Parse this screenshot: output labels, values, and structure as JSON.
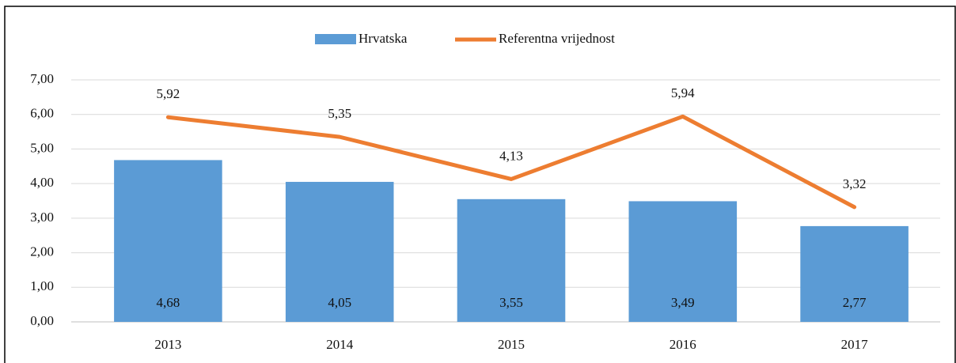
{
  "chart_data": {
    "type": "bar",
    "categories": [
      "2013",
      "2014",
      "2015",
      "2016",
      "2017"
    ],
    "series": [
      {
        "name": "Hrvatska",
        "type": "bar",
        "color": "#5b9bd5",
        "values": [
          4.68,
          4.05,
          3.55,
          3.49,
          2.77
        ],
        "value_labels": [
          "4,68",
          "4,05",
          "3,55",
          "3,49",
          "2,77"
        ]
      },
      {
        "name": "Referentna vrijednost",
        "type": "line",
        "color": "#ed7d31",
        "values": [
          5.92,
          5.35,
          4.13,
          5.94,
          3.32
        ],
        "value_labels": [
          "5,92",
          "5,35",
          "4,13",
          "5,94",
          "3,32"
        ]
      }
    ],
    "ylim": [
      0,
      7
    ],
    "yticks": [
      {
        "value": 0,
        "label": "0,00"
      },
      {
        "value": 1,
        "label": "1,00"
      },
      {
        "value": 2,
        "label": "2,00"
      },
      {
        "value": 3,
        "label": "3,00"
      },
      {
        "value": 4,
        "label": "4,00"
      },
      {
        "value": 5,
        "label": "5,00"
      },
      {
        "value": 6,
        "label": "6,00"
      },
      {
        "value": 7,
        "label": "7,00"
      }
    ],
    "grid": true,
    "legend": "top"
  }
}
